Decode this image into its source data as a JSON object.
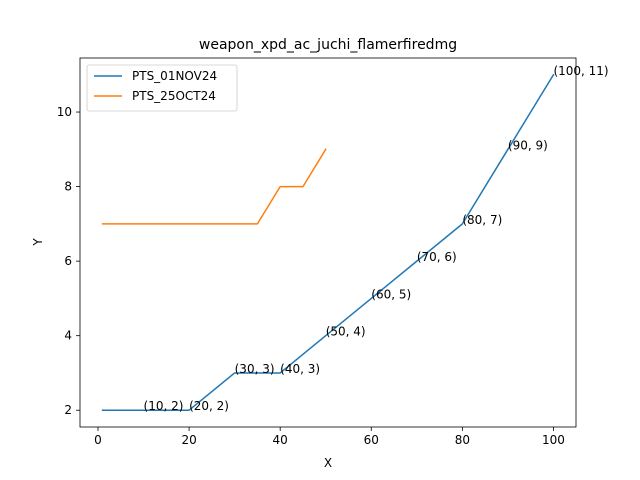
{
  "chart_data": {
    "type": "line",
    "title": "weapon_xpd_ac_juchi_flamerfiredmg",
    "xlabel": "X",
    "ylabel": "Y",
    "xlim": [
      -3.95,
      104.95
    ],
    "ylim": [
      1.55,
      11.45
    ],
    "xticks": [
      0,
      20,
      40,
      60,
      80,
      100
    ],
    "yticks": [
      2,
      4,
      6,
      8,
      10
    ],
    "legend_position": "upper left",
    "series": [
      {
        "name": "PTS_01NOV24",
        "color": "#1f77b4",
        "x": [
          1,
          10,
          20,
          30,
          40,
          50,
          60,
          70,
          80,
          90,
          100
        ],
        "y": [
          2,
          2,
          2,
          3,
          3,
          4,
          5,
          6,
          7,
          9,
          11
        ]
      },
      {
        "name": "PTS_25OCT24",
        "color": "#ff7f0e",
        "x": [
          1,
          35,
          40,
          45,
          50
        ],
        "y": [
          7,
          7,
          8,
          8,
          9
        ]
      }
    ],
    "annotations": [
      {
        "text": "(10, 2)",
        "x": 10,
        "y": 2
      },
      {
        "text": "(20, 2)",
        "x": 20,
        "y": 2
      },
      {
        "text": "(30, 3)",
        "x": 30,
        "y": 3
      },
      {
        "text": "(40, 3)",
        "x": 40,
        "y": 3
      },
      {
        "text": "(50, 4)",
        "x": 50,
        "y": 4
      },
      {
        "text": "(60, 5)",
        "x": 60,
        "y": 5
      },
      {
        "text": "(70, 6)",
        "x": 70,
        "y": 6
      },
      {
        "text": "(80, 7)",
        "x": 80,
        "y": 7
      },
      {
        "text": "(90, 9)",
        "x": 90,
        "y": 9
      },
      {
        "text": "(100, 11)",
        "x": 100,
        "y": 11
      }
    ]
  }
}
